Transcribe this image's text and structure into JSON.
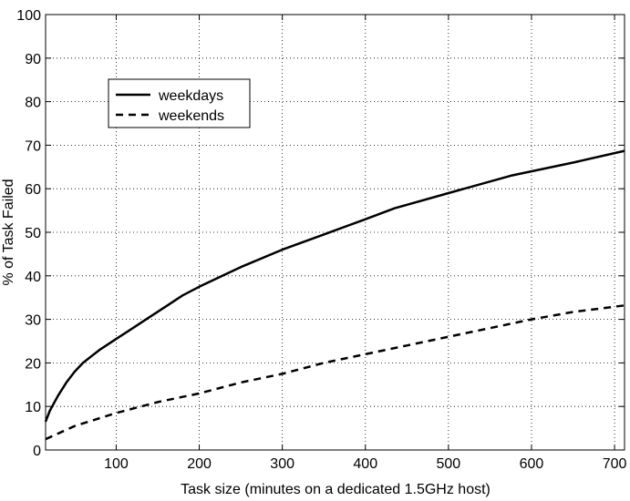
{
  "chart_data": {
    "type": "line",
    "xlabel": "Task size (minutes on a dedicated 1.5GHz host)",
    "ylabel": "% of Task Failed",
    "xlim": [
      15,
      712
    ],
    "ylim": [
      0,
      100
    ],
    "xticks": [
      100,
      200,
      300,
      400,
      500,
      600,
      700
    ],
    "yticks": [
      0,
      10,
      20,
      30,
      40,
      50,
      60,
      70,
      80,
      90,
      100
    ],
    "grid": true,
    "legend_position": "top-left",
    "series": [
      {
        "name": "weekdays",
        "style": "solid",
        "x": [
          15,
          20,
          30,
          40,
          50,
          60,
          70,
          80,
          100,
          120,
          140,
          160,
          180,
          200,
          250,
          300,
          350,
          400,
          435,
          500,
          575,
          650,
          712
        ],
        "y": [
          6.5,
          9,
          12.5,
          15.5,
          18,
          20,
          21.5,
          23,
          25.5,
          28,
          30.5,
          33,
          35.5,
          37.5,
          42,
          46,
          49.5,
          53,
          55.5,
          59,
          63,
          66,
          68.7
        ]
      },
      {
        "name": "weekends",
        "style": "dashed",
        "x": [
          15,
          50,
          100,
          150,
          200,
          250,
          300,
          350,
          400,
          450,
          500,
          550,
          600,
          650,
          712
        ],
        "y": [
          2.5,
          5.5,
          8.5,
          11,
          13,
          15.5,
          17.5,
          20,
          22,
          24,
          26,
          28,
          30,
          31.7,
          33.2
        ]
      }
    ]
  }
}
